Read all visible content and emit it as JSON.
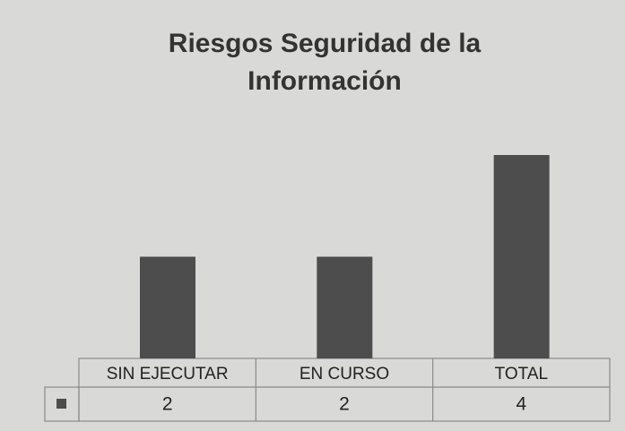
{
  "chart_data": {
    "type": "bar",
    "title": [
      "Riesgos Seguridad de la",
      "Información"
    ],
    "categories": [
      "SIN EJECUTAR",
      "EN CURSO",
      "TOTAL"
    ],
    "values": [
      2,
      2,
      4
    ],
    "color": "#4d4d4d",
    "ylim": [
      0,
      4
    ]
  }
}
